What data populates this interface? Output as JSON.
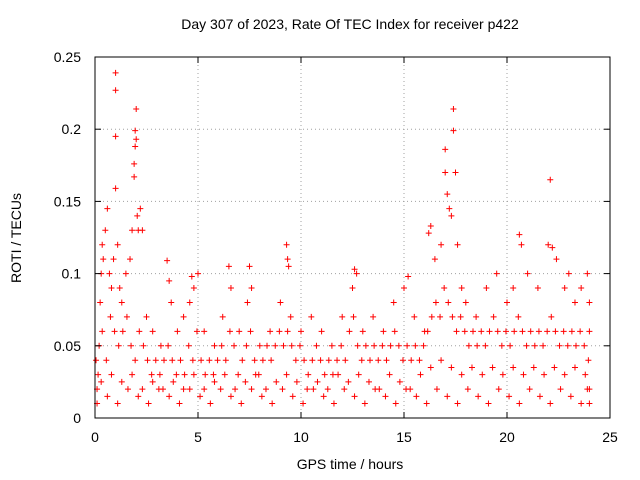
{
  "chart_data": {
    "type": "scatter",
    "title": "Day 307 of 2023, Rate Of TEC Index for receiver p422",
    "xlabel": "GPS time / hours",
    "ylabel": "ROTI / TECUs",
    "xlim": [
      0,
      25
    ],
    "ylim": [
      0,
      0.25
    ],
    "x_ticks": [
      "0",
      "5",
      "10",
      "15",
      "20",
      "25"
    ],
    "y_ticks": [
      "0",
      "0.05",
      "0.1",
      "0.15",
      "0.2",
      "0.25"
    ],
    "grid": true,
    "marker": "+",
    "color": "#ff0000",
    "x_range_of_points": [
      0,
      24
    ],
    "points": [
      [
        0.1,
        0.02
      ],
      [
        0.2,
        0.05
      ],
      [
        0.25,
        0.08
      ],
      [
        0.3,
        0.1
      ],
      [
        0.35,
        0.12
      ],
      [
        0.4,
        0.11
      ],
      [
        0.5,
        0.13
      ],
      [
        0.6,
        0.145
      ],
      [
        0.7,
        0.1
      ],
      [
        0.8,
        0.09
      ],
      [
        0.9,
        0.11
      ],
      [
        1.0,
        0.159
      ],
      [
        1.0,
        0.195
      ],
      [
        1.0,
        0.227
      ],
      [
        1.0,
        0.239
      ],
      [
        1.1,
        0.12
      ],
      [
        1.2,
        0.09
      ],
      [
        1.3,
        0.08
      ],
      [
        1.5,
        0.1
      ],
      [
        1.7,
        0.11
      ],
      [
        1.8,
        0.13
      ],
      [
        1.9,
        0.167
      ],
      [
        1.9,
        0.176
      ],
      [
        1.95,
        0.188
      ],
      [
        1.95,
        0.199
      ],
      [
        2.0,
        0.214
      ],
      [
        2.0,
        0.193
      ],
      [
        2.05,
        0.14
      ],
      [
        2.1,
        0.13
      ],
      [
        2.2,
        0.145
      ],
      [
        2.3,
        0.13
      ],
      [
        2.5,
        0.07
      ],
      [
        2.8,
        0.06
      ],
      [
        3.2,
        0.05
      ],
      [
        3.5,
        0.109
      ],
      [
        3.6,
        0.095
      ],
      [
        3.7,
        0.08
      ],
      [
        4.0,
        0.06
      ],
      [
        4.3,
        0.07
      ],
      [
        4.6,
        0.08
      ],
      [
        4.7,
        0.098
      ],
      [
        4.8,
        0.09
      ],
      [
        5.0,
        0.1
      ],
      [
        5.3,
        0.06
      ],
      [
        5.8,
        0.05
      ],
      [
        6.2,
        0.07
      ],
      [
        6.5,
        0.105
      ],
      [
        6.6,
        0.09
      ],
      [
        7.0,
        0.06
      ],
      [
        7.4,
        0.08
      ],
      [
        7.5,
        0.105
      ],
      [
        7.6,
        0.09
      ],
      [
        8.0,
        0.05
      ],
      [
        8.5,
        0.06
      ],
      [
        9.0,
        0.08
      ],
      [
        9.3,
        0.12
      ],
      [
        9.35,
        0.11
      ],
      [
        9.4,
        0.105
      ],
      [
        9.5,
        0.07
      ],
      [
        10.0,
        0.06
      ],
      [
        10.5,
        0.07
      ],
      [
        11.0,
        0.06
      ],
      [
        11.5,
        0.05
      ],
      [
        12.0,
        0.07
      ],
      [
        12.5,
        0.09
      ],
      [
        12.6,
        0.103
      ],
      [
        12.7,
        0.1
      ],
      [
        13.0,
        0.06
      ],
      [
        13.5,
        0.07
      ],
      [
        14.0,
        0.06
      ],
      [
        14.5,
        0.08
      ],
      [
        15.0,
        0.09
      ],
      [
        15.2,
        0.098
      ],
      [
        15.5,
        0.07
      ],
      [
        16.0,
        0.06
      ],
      [
        16.2,
        0.128
      ],
      [
        16.3,
        0.133
      ],
      [
        16.5,
        0.11
      ],
      [
        16.8,
        0.12
      ],
      [
        17.0,
        0.186
      ],
      [
        17.0,
        0.17
      ],
      [
        17.1,
        0.155
      ],
      [
        17.2,
        0.145
      ],
      [
        17.3,
        0.14
      ],
      [
        17.4,
        0.199
      ],
      [
        17.4,
        0.214
      ],
      [
        17.5,
        0.17
      ],
      [
        17.6,
        0.12
      ],
      [
        17.8,
        0.09
      ],
      [
        18.0,
        0.08
      ],
      [
        18.5,
        0.07
      ],
      [
        19.0,
        0.09
      ],
      [
        19.5,
        0.1
      ],
      [
        20.0,
        0.08
      ],
      [
        20.3,
        0.09
      ],
      [
        20.6,
        0.127
      ],
      [
        20.7,
        0.12
      ],
      [
        21.0,
        0.1
      ],
      [
        21.5,
        0.09
      ],
      [
        22.0,
        0.12
      ],
      [
        22.1,
        0.165
      ],
      [
        22.2,
        0.118
      ],
      [
        22.4,
        0.11
      ],
      [
        22.8,
        0.09
      ],
      [
        23.0,
        0.1
      ],
      [
        23.3,
        0.08
      ],
      [
        23.6,
        0.09
      ],
      [
        23.9,
        0.1
      ],
      [
        24.0,
        0.08
      ],
      [
        24.0,
        0.06
      ],
      [
        0.15,
        0.03
      ],
      [
        0.35,
        0.06
      ],
      [
        0.55,
        0.04
      ],
      [
        0.75,
        0.07
      ],
      [
        0.95,
        0.06
      ],
      [
        1.15,
        0.05
      ],
      [
        1.35,
        0.06
      ],
      [
        1.55,
        0.07
      ],
      [
        1.75,
        0.05
      ],
      [
        1.95,
        0.04
      ],
      [
        2.15,
        0.06
      ],
      [
        2.35,
        0.05
      ],
      [
        2.55,
        0.04
      ],
      [
        2.75,
        0.03
      ],
      [
        2.95,
        0.04
      ],
      [
        3.15,
        0.03
      ],
      [
        3.35,
        0.04
      ],
      [
        3.55,
        0.05
      ],
      [
        3.75,
        0.04
      ],
      [
        3.95,
        0.03
      ],
      [
        4.15,
        0.04
      ],
      [
        4.35,
        0.03
      ],
      [
        4.55,
        0.05
      ],
      [
        4.75,
        0.04
      ],
      [
        4.95,
        0.06
      ],
      [
        5.15,
        0.04
      ],
      [
        5.35,
        0.03
      ],
      [
        5.55,
        0.04
      ],
      [
        5.75,
        0.03
      ],
      [
        5.95,
        0.04
      ],
      [
        6.15,
        0.05
      ],
      [
        6.35,
        0.04
      ],
      [
        6.55,
        0.06
      ],
      [
        6.75,
        0.05
      ],
      [
        6.95,
        0.03
      ],
      [
        7.15,
        0.04
      ],
      [
        7.35,
        0.05
      ],
      [
        7.55,
        0.06
      ],
      [
        7.75,
        0.04
      ],
      [
        7.95,
        0.03
      ],
      [
        8.15,
        0.04
      ],
      [
        8.35,
        0.05
      ],
      [
        8.55,
        0.04
      ],
      [
        8.75,
        0.05
      ],
      [
        8.95,
        0.06
      ],
      [
        9.15,
        0.05
      ],
      [
        9.35,
        0.06
      ],
      [
        9.55,
        0.05
      ],
      [
        9.75,
        0.04
      ],
      [
        9.95,
        0.05
      ],
      [
        10.15,
        0.04
      ],
      [
        10.35,
        0.03
      ],
      [
        10.55,
        0.04
      ],
      [
        10.75,
        0.05
      ],
      [
        10.95,
        0.04
      ],
      [
        11.15,
        0.03
      ],
      [
        11.35,
        0.04
      ],
      [
        11.55,
        0.03
      ],
      [
        11.75,
        0.04
      ],
      [
        11.95,
        0.05
      ],
      [
        12.15,
        0.04
      ],
      [
        12.35,
        0.06
      ],
      [
        12.55,
        0.07
      ],
      [
        12.75,
        0.05
      ],
      [
        12.95,
        0.04
      ],
      [
        13.15,
        0.05
      ],
      [
        13.35,
        0.04
      ],
      [
        13.55,
        0.05
      ],
      [
        13.75,
        0.04
      ],
      [
        13.95,
        0.05
      ],
      [
        14.15,
        0.04
      ],
      [
        14.35,
        0.05
      ],
      [
        14.55,
        0.06
      ],
      [
        14.75,
        0.05
      ],
      [
        14.95,
        0.04
      ],
      [
        15.15,
        0.05
      ],
      [
        15.35,
        0.04
      ],
      [
        15.55,
        0.05
      ],
      [
        15.75,
        0.04
      ],
      [
        15.95,
        0.05
      ],
      [
        16.15,
        0.06
      ],
      [
        16.35,
        0.07
      ],
      [
        16.55,
        0.08
      ],
      [
        16.75,
        0.07
      ],
      [
        16.95,
        0.09
      ],
      [
        17.15,
        0.08
      ],
      [
        17.35,
        0.07
      ],
      [
        17.55,
        0.06
      ],
      [
        17.75,
        0.07
      ],
      [
        17.95,
        0.06
      ],
      [
        18.15,
        0.05
      ],
      [
        18.35,
        0.06
      ],
      [
        18.55,
        0.05
      ],
      [
        18.75,
        0.06
      ],
      [
        18.95,
        0.05
      ],
      [
        19.15,
        0.06
      ],
      [
        19.35,
        0.07
      ],
      [
        19.55,
        0.06
      ],
      [
        19.75,
        0.05
      ],
      [
        19.95,
        0.06
      ],
      [
        20.15,
        0.05
      ],
      [
        20.35,
        0.06
      ],
      [
        20.55,
        0.07
      ],
      [
        20.75,
        0.06
      ],
      [
        20.95,
        0.05
      ],
      [
        21.15,
        0.06
      ],
      [
        21.35,
        0.05
      ],
      [
        21.55,
        0.06
      ],
      [
        21.75,
        0.05
      ],
      [
        21.95,
        0.06
      ],
      [
        22.15,
        0.07
      ],
      [
        22.35,
        0.06
      ],
      [
        22.55,
        0.05
      ],
      [
        22.75,
        0.06
      ],
      [
        22.95,
        0.05
      ],
      [
        23.15,
        0.06
      ],
      [
        23.35,
        0.05
      ],
      [
        23.55,
        0.06
      ],
      [
        23.75,
        0.05
      ],
      [
        23.95,
        0.04
      ],
      [
        0.1,
        0.01
      ],
      [
        0.6,
        0.015
      ],
      [
        1.1,
        0.01
      ],
      [
        1.6,
        0.02
      ],
      [
        2.1,
        0.015
      ],
      [
        2.6,
        0.01
      ],
      [
        3.1,
        0.02
      ],
      [
        3.6,
        0.015
      ],
      [
        4.1,
        0.01
      ],
      [
        4.6,
        0.02
      ],
      [
        5.1,
        0.015
      ],
      [
        5.6,
        0.01
      ],
      [
        6.1,
        0.02
      ],
      [
        6.6,
        0.015
      ],
      [
        7.1,
        0.01
      ],
      [
        7.6,
        0.02
      ],
      [
        8.1,
        0.015
      ],
      [
        8.6,
        0.01
      ],
      [
        9.1,
        0.02
      ],
      [
        9.6,
        0.015
      ],
      [
        10.1,
        0.01
      ],
      [
        10.6,
        0.02
      ],
      [
        11.1,
        0.015
      ],
      [
        11.6,
        0.01
      ],
      [
        12.1,
        0.02
      ],
      [
        12.6,
        0.015
      ],
      [
        13.1,
        0.01
      ],
      [
        13.6,
        0.02
      ],
      [
        14.1,
        0.015
      ],
      [
        14.6,
        0.01
      ],
      [
        15.1,
        0.02
      ],
      [
        15.6,
        0.015
      ],
      [
        16.1,
        0.01
      ],
      [
        16.6,
        0.02
      ],
      [
        17.1,
        0.015
      ],
      [
        17.6,
        0.01
      ],
      [
        18.1,
        0.02
      ],
      [
        18.6,
        0.015
      ],
      [
        19.1,
        0.01
      ],
      [
        19.6,
        0.02
      ],
      [
        20.1,
        0.015
      ],
      [
        20.6,
        0.01
      ],
      [
        21.1,
        0.02
      ],
      [
        21.6,
        0.015
      ],
      [
        22.1,
        0.01
      ],
      [
        22.6,
        0.02
      ],
      [
        23.1,
        0.015
      ],
      [
        23.6,
        0.01
      ],
      [
        24.0,
        0.02
      ],
      [
        24.0,
        0.01
      ],
      [
        0.3,
        0.025
      ],
      [
        0.8,
        0.03
      ],
      [
        1.3,
        0.025
      ],
      [
        1.8,
        0.03
      ],
      [
        2.3,
        0.02
      ],
      [
        2.8,
        0.025
      ],
      [
        3.3,
        0.02
      ],
      [
        3.8,
        0.025
      ],
      [
        4.3,
        0.02
      ],
      [
        4.8,
        0.03
      ],
      [
        5.3,
        0.02
      ],
      [
        5.8,
        0.025
      ],
      [
        6.3,
        0.03
      ],
      [
        6.8,
        0.02
      ],
      [
        7.3,
        0.025
      ],
      [
        7.8,
        0.03
      ],
      [
        8.3,
        0.02
      ],
      [
        8.8,
        0.025
      ],
      [
        9.3,
        0.03
      ],
      [
        9.8,
        0.025
      ],
      [
        10.3,
        0.02
      ],
      [
        10.8,
        0.025
      ],
      [
        11.3,
        0.02
      ],
      [
        11.8,
        0.03
      ],
      [
        12.3,
        0.025
      ],
      [
        12.8,
        0.03
      ],
      [
        13.3,
        0.025
      ],
      [
        13.8,
        0.02
      ],
      [
        14.3,
        0.03
      ],
      [
        14.8,
        0.025
      ],
      [
        15.3,
        0.02
      ],
      [
        15.8,
        0.03
      ],
      [
        16.3,
        0.035
      ],
      [
        16.8,
        0.04
      ],
      [
        17.3,
        0.035
      ],
      [
        17.8,
        0.03
      ],
      [
        18.3,
        0.035
      ],
      [
        18.8,
        0.03
      ],
      [
        19.3,
        0.035
      ],
      [
        19.8,
        0.03
      ],
      [
        20.3,
        0.035
      ],
      [
        20.8,
        0.03
      ],
      [
        21.3,
        0.035
      ],
      [
        21.8,
        0.03
      ],
      [
        22.3,
        0.035
      ],
      [
        22.8,
        0.03
      ],
      [
        23.3,
        0.035
      ],
      [
        23.8,
        0.03
      ],
      [
        23.9,
        0.02
      ],
      [
        0.05,
        0.04
      ]
    ]
  }
}
